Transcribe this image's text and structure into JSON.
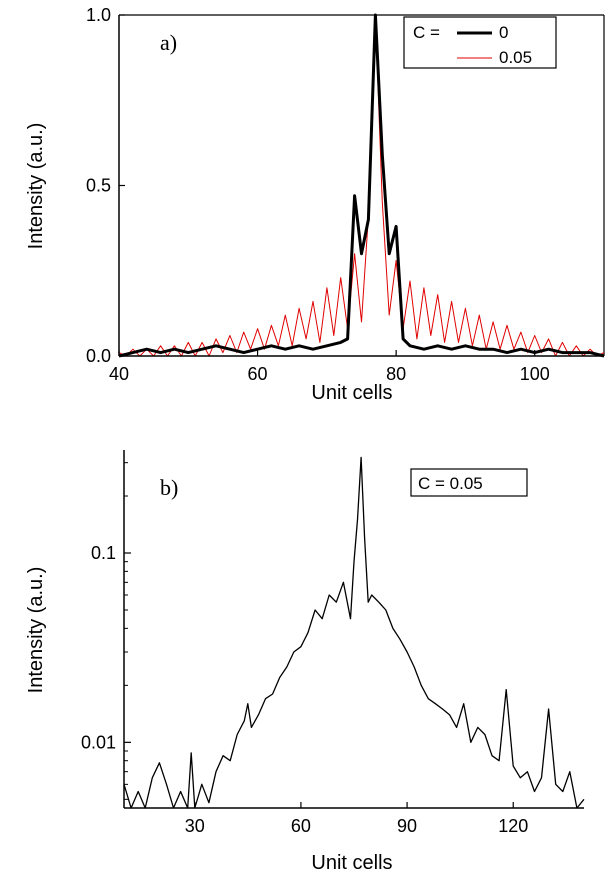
{
  "chart_data": [
    {
      "type": "line",
      "panel_label": "a)",
      "xlabel": "Unit cells",
      "ylabel": "Intensity (a.u.)",
      "xlim": [
        40,
        110
      ],
      "ylim": [
        0,
        1.0
      ],
      "x_ticks": [
        40,
        60,
        80,
        100
      ],
      "x_tick_labels": [
        "40",
        "60",
        "80",
        "100"
      ],
      "y_ticks": [
        0.0,
        0.5,
        1.0
      ],
      "y_tick_labels": [
        "0.0",
        "0.5",
        "1.0"
      ],
      "legend": {
        "placement": "top-right",
        "title": "C =",
        "labels": [
          "0",
          "0.05"
        ]
      },
      "series": [
        {
          "name": "0",
          "color": "#000000",
          "line_width": "bold",
          "x": [
            40,
            42,
            44,
            46,
            48,
            50,
            52,
            54,
            56,
            58,
            60,
            62,
            64,
            66,
            68,
            70,
            72,
            73,
            74,
            75,
            76,
            77,
            78,
            79,
            80,
            81,
            82,
            84,
            86,
            88,
            90,
            92,
            94,
            96,
            98,
            100,
            102,
            104,
            106,
            108,
            110
          ],
          "y": [
            0.0,
            0.01,
            0.02,
            0.01,
            0.02,
            0.01,
            0.02,
            0.03,
            0.02,
            0.01,
            0.02,
            0.03,
            0.02,
            0.03,
            0.02,
            0.03,
            0.04,
            0.05,
            0.47,
            0.3,
            0.4,
            1.0,
            0.59,
            0.3,
            0.38,
            0.05,
            0.03,
            0.02,
            0.03,
            0.02,
            0.03,
            0.02,
            0.02,
            0.01,
            0.02,
            0.01,
            0.02,
            0.01,
            0.01,
            0.01,
            0.0
          ]
        },
        {
          "name": "0.05",
          "color": "#e00000",
          "line_width": "thin",
          "x": [
            40,
            41,
            42,
            43,
            44,
            45,
            46,
            47,
            48,
            49,
            50,
            51,
            52,
            53,
            54,
            55,
            56,
            57,
            58,
            59,
            60,
            61,
            62,
            63,
            64,
            65,
            66,
            67,
            68,
            69,
            70,
            71,
            72,
            73,
            74,
            75,
            76,
            77,
            78,
            79,
            80,
            81,
            82,
            83,
            84,
            85,
            86,
            87,
            88,
            89,
            90,
            91,
            92,
            93,
            94,
            95,
            96,
            97,
            98,
            99,
            100,
            101,
            102,
            103,
            104,
            105,
            106,
            107,
            108,
            109,
            110
          ],
          "y": [
            0.01,
            0.0,
            0.02,
            0.0,
            0.02,
            0.0,
            0.03,
            0.0,
            0.03,
            0.0,
            0.04,
            0.0,
            0.04,
            0.0,
            0.05,
            0.01,
            0.06,
            0.01,
            0.07,
            0.02,
            0.08,
            0.02,
            0.09,
            0.03,
            0.12,
            0.03,
            0.14,
            0.05,
            0.16,
            0.04,
            0.2,
            0.06,
            0.23,
            0.08,
            0.3,
            0.1,
            0.41,
            1.0,
            0.45,
            0.12,
            0.28,
            0.08,
            0.22,
            0.05,
            0.2,
            0.06,
            0.18,
            0.04,
            0.16,
            0.04,
            0.14,
            0.03,
            0.12,
            0.02,
            0.1,
            0.02,
            0.09,
            0.02,
            0.07,
            0.01,
            0.06,
            0.01,
            0.05,
            0.0,
            0.04,
            0.0,
            0.03,
            0.0,
            0.02,
            0.0,
            0.01
          ]
        }
      ]
    },
    {
      "type": "line",
      "panel_label": "b)",
      "xlabel": "Unit cells",
      "ylabel": "Intensity (a.u.)",
      "yscale": "log",
      "xlim": [
        10,
        140
      ],
      "ylim": [
        0.0045,
        0.35
      ],
      "x_ticks": [
        30,
        60,
        90,
        120
      ],
      "x_tick_labels": [
        "30",
        "60",
        "90",
        "120"
      ],
      "y_ticks": [
        0.01,
        0.1
      ],
      "y_tick_labels": [
        "0.01",
        "0.1"
      ],
      "legend": {
        "placement": "top-right",
        "labels": [
          "C = 0.05"
        ]
      },
      "series": [
        {
          "name": "C = 0.05",
          "color": "#000000",
          "x": [
            10,
            12,
            14,
            16,
            18,
            20,
            22,
            24,
            26,
            28,
            29,
            30,
            32,
            34,
            36,
            38,
            40,
            42,
            44,
            45,
            46,
            48,
            50,
            52,
            54,
            56,
            58,
            60,
            62,
            64,
            66,
            68,
            70,
            72,
            74,
            75,
            76,
            77,
            78,
            79,
            80,
            82,
            84,
            86,
            88,
            90,
            92,
            94,
            96,
            98,
            100,
            102,
            104,
            106,
            108,
            110,
            112,
            114,
            116,
            118,
            120,
            122,
            124,
            126,
            128,
            130,
            132,
            134,
            136,
            138,
            140
          ],
          "y": [
            0.006,
            0.0045,
            0.0055,
            0.0045,
            0.0065,
            0.0078,
            0.006,
            0.0045,
            0.0055,
            0.0045,
            0.0088,
            0.0045,
            0.006,
            0.0048,
            0.007,
            0.0085,
            0.008,
            0.011,
            0.013,
            0.016,
            0.012,
            0.014,
            0.017,
            0.018,
            0.022,
            0.025,
            0.03,
            0.032,
            0.038,
            0.05,
            0.045,
            0.06,
            0.055,
            0.07,
            0.045,
            0.09,
            0.15,
            0.32,
            0.12,
            0.055,
            0.06,
            0.055,
            0.05,
            0.04,
            0.035,
            0.03,
            0.025,
            0.02,
            0.017,
            0.016,
            0.015,
            0.014,
            0.012,
            0.016,
            0.01,
            0.012,
            0.011,
            0.0085,
            0.008,
            0.019,
            0.0075,
            0.0065,
            0.007,
            0.0055,
            0.0065,
            0.015,
            0.006,
            0.0055,
            0.007,
            0.0045,
            0.005
          ]
        }
      ]
    }
  ]
}
